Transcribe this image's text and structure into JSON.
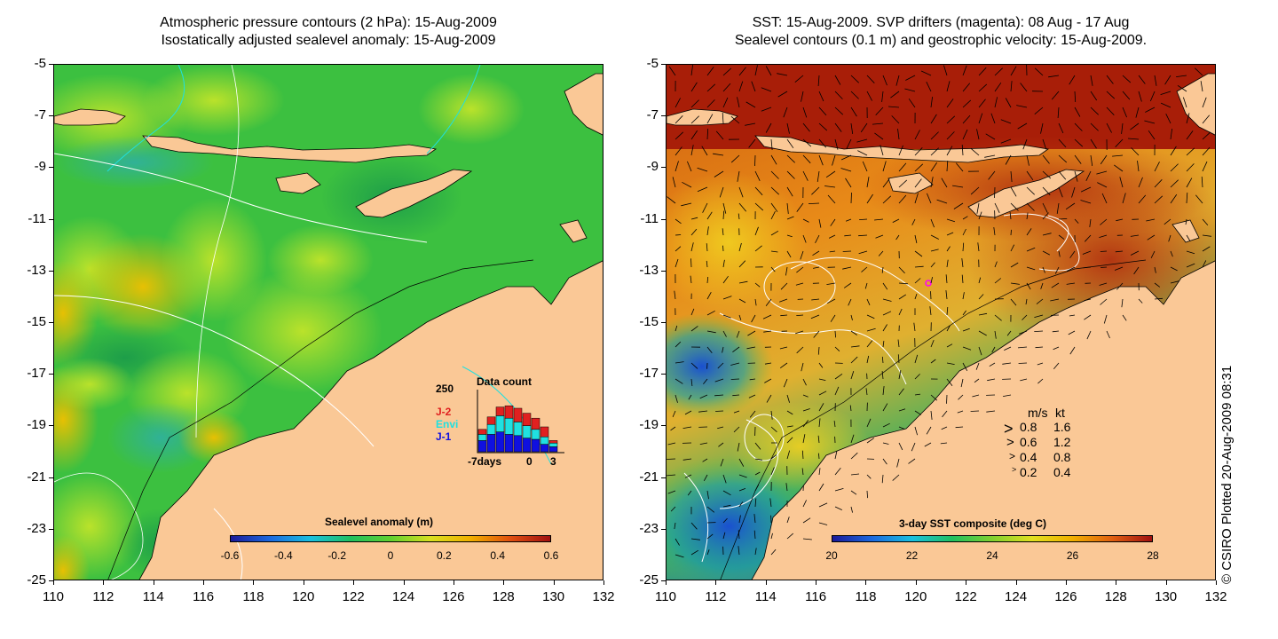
{
  "left_panel": {
    "title_line1": "Atmospheric pressure contours (2 hPa): 15-Aug-2009",
    "title_line2": "Isostatically adjusted sealevel anomaly: 15-Aug-2009",
    "colorbar_title": "Sealevel anomaly (m)",
    "colorbar_ticks": [
      "-0.6",
      "-0.4",
      "-0.2",
      "0",
      "0.2",
      "0.4",
      "0.6"
    ],
    "inset": {
      "title": "Data count",
      "ymax": "250",
      "series_labels": [
        {
          "text": "J-2",
          "color": "#e02020"
        },
        {
          "text": "Envi",
          "color": "#20e0e0"
        },
        {
          "text": "J-1",
          "color": "#1010e0"
        }
      ],
      "x_labels": [
        "-7days",
        "0",
        "3"
      ]
    }
  },
  "right_panel": {
    "title_line1": "SST: 15-Aug-2009. SVP drifters (magenta): 08 Aug - 17 Aug",
    "title_line2": "Sealevel contours (0.1 m) and geostrophic velocity: 15-Aug-2009.",
    "colorbar_title": "3-day SST composite (deg C)",
    "colorbar_ticks": [
      "20",
      "22",
      "24",
      "26",
      "28"
    ],
    "velocity_legend": {
      "header_ms": "m/s",
      "header_kt": "kt",
      "rows": [
        {
          "ms": "0.8",
          "kt": "1.6"
        },
        {
          "ms": "0.6",
          "kt": "1.2"
        },
        {
          "ms": "0.4",
          "kt": "0.8"
        },
        {
          "ms": "0.2",
          "kt": "0.4"
        }
      ]
    }
  },
  "axes": {
    "y_ticks": [
      "-5",
      "-7",
      "-9",
      "-11",
      "-13",
      "-15",
      "-17",
      "-19",
      "-21",
      "-23",
      "-25"
    ],
    "x_ticks": [
      "110",
      "112",
      "114",
      "116",
      "118",
      "120",
      "122",
      "124",
      "126",
      "128",
      "130",
      "132"
    ]
  },
  "credit": "© CSIRO Plotted 20-Aug-2009 08:31",
  "colors": {
    "land": "#fac896",
    "sla_ocean": "#3cc040",
    "sst_warm": "#b82a0a",
    "sst_mid": "#e08a10",
    "sst_cool": "#1e6adc"
  }
}
